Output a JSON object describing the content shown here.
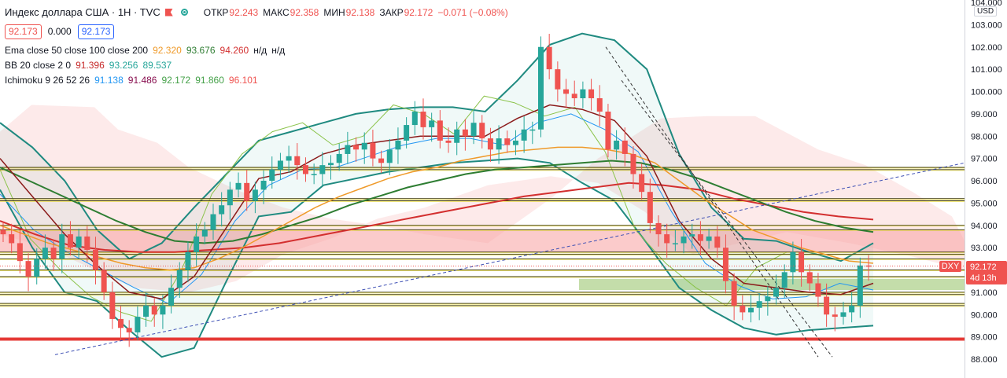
{
  "header": {
    "title": "Индекс доллара США · 1H · TVC",
    "ohlc": [
      {
        "k": "ОТКР",
        "v": "92.243"
      },
      {
        "k": "МАКС",
        "v": "92.358"
      },
      {
        "k": "МИН",
        "v": "92.138"
      },
      {
        "k": "ЗАКР",
        "v": "92.172"
      }
    ],
    "change": "−0.071 (−0.08%)",
    "bid": "92.173",
    "spread": "0.000",
    "ask": "92.173"
  },
  "indicators": {
    "ema": {
      "name": "Ema close 50 close 100 close 200",
      "v1": "92.320",
      "v2": "93.676",
      "v3": "94.260",
      "v4": "н/д",
      "v5": "н/д"
    },
    "bb": {
      "name": "BB 20 close 2 0",
      "v1": "91.396",
      "v2": "93.256",
      "v3": "89.537"
    },
    "ichimoku": {
      "name": "Ichimoku 9 26 52 26",
      "v1": "91.138",
      "v2": "91.486",
      "v3": "92.172",
      "v4": "91.860",
      "v5": "96.101"
    }
  },
  "axis": {
    "currency": "USD",
    "ticks": [
      "104.000",
      "103.000",
      "102.000",
      "101.000",
      "100.000",
      "99.000",
      "98.000",
      "97.000",
      "96.000",
      "95.000",
      "94.000",
      "93.000",
      "92.000",
      "91.000",
      "90.000",
      "89.000",
      "88.000"
    ],
    "current_price": "92.172",
    "time_left": "4d 13h",
    "symbol": "DXY"
  },
  "colors": {
    "up": "#26a69a",
    "down": "#ef5350",
    "ema50": "#ef9a2a",
    "ema100": "#2e7d32",
    "ema200": "#d32f2f",
    "bb_basis": "#8b1a1a",
    "bb_band": "#1f8a80",
    "support_line": "#e53935"
  },
  "chart_data": {
    "type": "candlestick",
    "title": "Индекс доллара США · 1H · TVC",
    "ylim": [
      87.6,
      104.1
    ],
    "levels": [
      96.6,
      96.5,
      95.2,
      95.1,
      94.0,
      93.8,
      92.8,
      92.7,
      92.5,
      92.0,
      91.7,
      91.0,
      90.9,
      90.5,
      90.4
    ],
    "support": 88.9,
    "resistance_zone": [
      92.8,
      93.8
    ],
    "support_zone": [
      91.1,
      91.6
    ],
    "series_close": [
      93.6,
      93.2,
      92.4,
      91.7,
      92.5,
      93.0,
      92.5,
      93.6,
      93.0,
      93.5,
      92.9,
      92.0,
      91.0,
      89.8,
      89.4,
      89.2,
      89.9,
      90.4,
      90.0,
      90.4,
      91.2,
      92.0,
      92.8,
      93.5,
      93.8,
      94.5,
      94.9,
      95.6,
      95.9,
      95.1,
      95.6,
      96.0,
      96.5,
      96.9,
      97.1,
      96.7,
      96.3,
      96.3,
      96.7,
      96.8,
      97.2,
      97.6,
      97.4,
      97.7,
      97.0,
      96.8,
      97.4,
      97.8,
      98.5,
      99.1,
      98.4,
      98.7,
      97.8,
      97.7,
      98.3,
      98.0,
      98.6,
      97.9,
      97.4,
      97.9,
      97.6,
      97.8,
      98.3,
      98.3,
      102.0,
      101.0,
      100.1,
      99.9,
      99.7,
      100.1,
      99.7,
      99.1,
      97.4,
      97.8,
      97.2,
      96.3,
      95.5,
      94.1,
      93.6,
      93.2,
      93.2,
      93.5,
      93.6,
      93.3,
      93.5,
      93.0,
      91.5,
      90.4,
      90.1,
      90.3,
      90.6,
      90.8,
      91.2,
      91.9,
      92.8,
      91.9,
      91.4,
      90.8,
      90.0,
      89.9,
      90.1,
      90.4,
      92.2,
      92.172
    ],
    "ema50": [
      94.0,
      93.6,
      93.2,
      92.9,
      92.6,
      92.3,
      92.1,
      92.0,
      92.1,
      92.5,
      93.0,
      93.6,
      94.2,
      94.8,
      95.3,
      95.7,
      96.1,
      96.4,
      96.6,
      96.9,
      97.1,
      97.3,
      97.4,
      97.5,
      97.5,
      97.4,
      97.2,
      96.8,
      96.0,
      95.2,
      94.5,
      93.8,
      93.4,
      93.0,
      92.7,
      92.4,
      92.3
    ],
    "ema100": [
      96.6,
      96.0,
      95.4,
      94.8,
      94.2,
      93.7,
      93.3,
      93.2,
      93.3,
      93.6,
      94.0,
      94.4,
      94.9,
      95.3,
      95.7,
      96.0,
      96.3,
      96.5,
      96.6,
      96.7,
      96.8,
      96.9,
      96.8,
      96.5,
      96.1,
      95.6,
      95.1,
      94.6,
      94.2,
      93.9,
      93.7
    ],
    "ema200": [
      94.2,
      93.6,
      93.1,
      92.9,
      92.8,
      92.8,
      92.9,
      93.0,
      93.2,
      93.5,
      93.8,
      94.1,
      94.4,
      94.7,
      95.0,
      95.3,
      95.5,
      95.7,
      95.9,
      95.8,
      95.6,
      95.2,
      94.9,
      94.6,
      94.4,
      94.26
    ],
    "trend_lines": [
      {
        "style": "dashed",
        "color": "blue",
        "from": 88.2,
        "to": 96.8
      },
      {
        "style": "dashed",
        "color": "black",
        "from": 102.0,
        "to": 88.1
      },
      {
        "style": "dashed",
        "color": "black",
        "from": 100.5,
        "to": 88.1
      }
    ]
  }
}
